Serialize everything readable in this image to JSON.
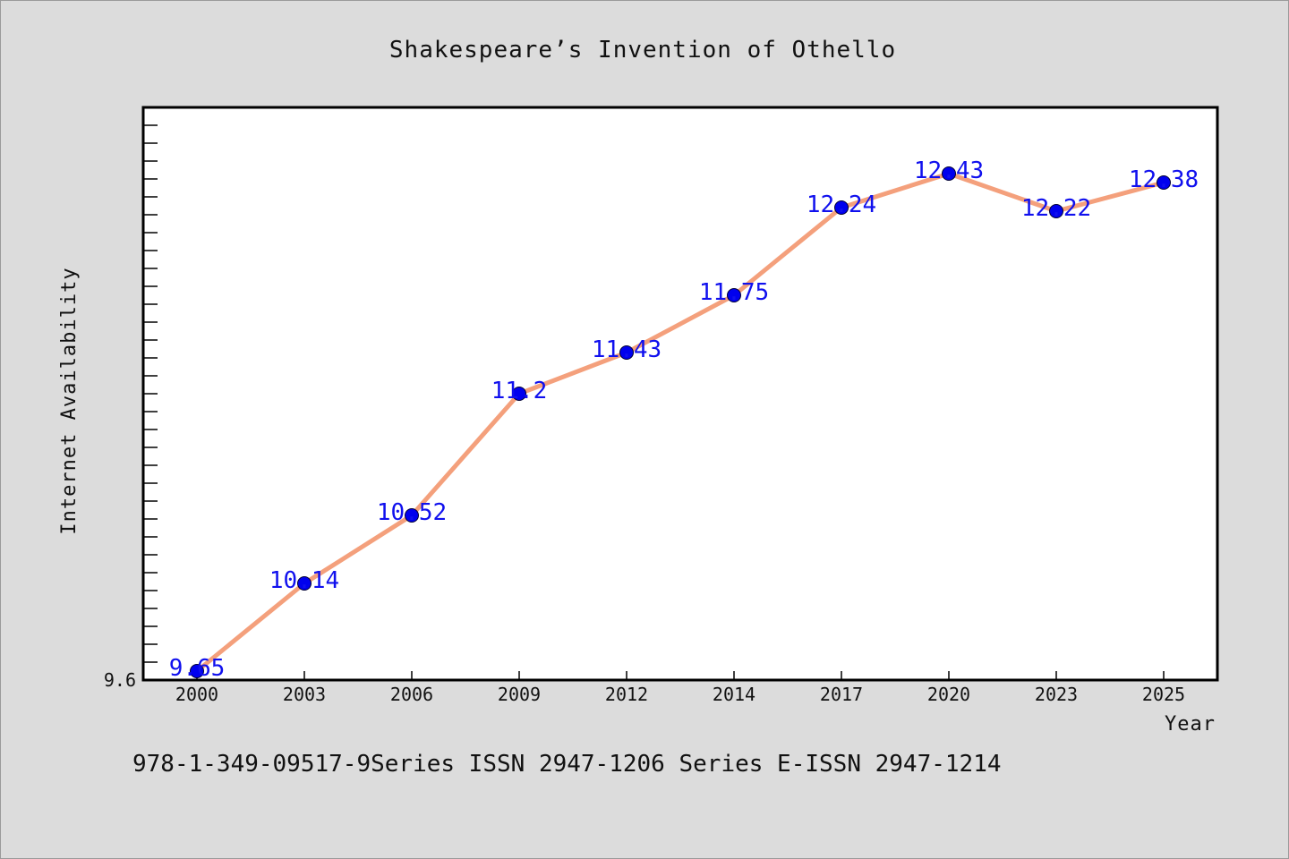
{
  "chart_data": {
    "type": "line",
    "title": "Shakespeare’s Invention of Othello",
    "xlabel": "Year",
    "ylabel": "Internet Availability",
    "x": [
      "2000",
      "2003",
      "2006",
      "2009",
      "2012",
      "2014",
      "2017",
      "2020",
      "2023",
      "2025"
    ],
    "series": [
      {
        "values": [
          9.65,
          10.14,
          10.52,
          11.2,
          11.43,
          11.75,
          12.24,
          12.43,
          12.22,
          12.38
        ]
      }
    ],
    "data_labels": [
      "9.65",
      "10.14",
      "10.52",
      "11.2",
      "11.43",
      "11.75",
      "12.24",
      "12.43",
      "12.22",
      "12.38"
    ],
    "ylim": [
      9.6,
      12.8
    ],
    "y_tick_labels": [
      "9.6"
    ],
    "grid": false,
    "legend": "none",
    "colors": {
      "line": "#f4a07c",
      "marker": "#0000ee",
      "label": "#1010ee",
      "background": "#dcdcdc",
      "plot_background": "#ffffff"
    }
  },
  "footer": {
    "text": "978-1-349-09517-9Series ISSN 2947-1206 Series E-ISSN 2947-1214"
  }
}
